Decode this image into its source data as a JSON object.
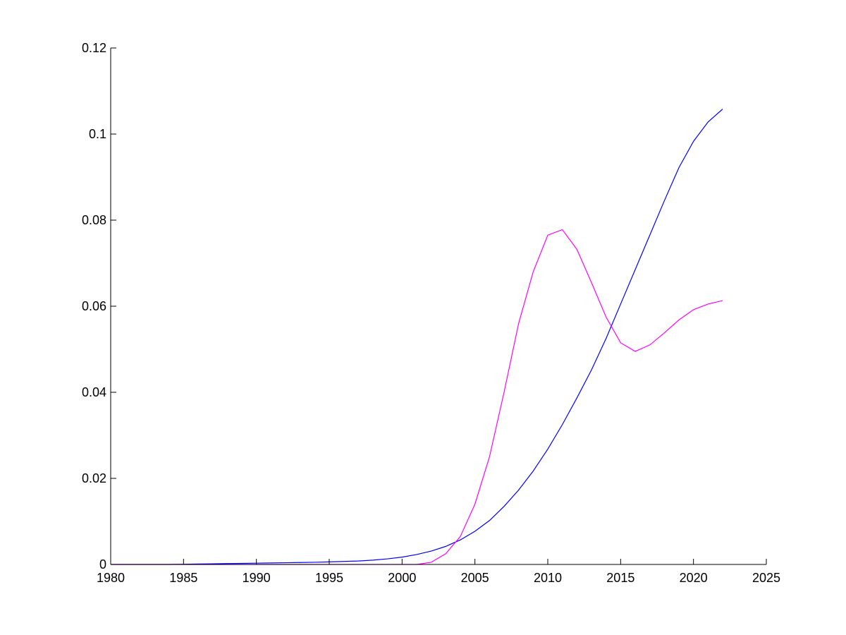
{
  "chart_data": {
    "type": "line",
    "title": "",
    "xlabel": "",
    "ylabel": "",
    "xlim": [
      1980,
      2025
    ],
    "ylim": [
      0,
      0.12
    ],
    "grid": false,
    "xticks": [
      1980,
      1985,
      1990,
      1995,
      2000,
      2005,
      2010,
      2015,
      2020,
      2025
    ],
    "yticks": [
      0,
      0.02,
      0.04,
      0.06,
      0.08,
      0.1,
      0.12
    ],
    "xtick_labels": [
      "1980",
      "1985",
      "1990",
      "1995",
      "2000",
      "2005",
      "2010",
      "2015",
      "2020",
      "2025"
    ],
    "ytick_labels": [
      "0",
      "0.02",
      "0.04",
      "0.06",
      "0.08",
      "0.1",
      "0.12"
    ],
    "x": [
      1980,
      1981,
      1982,
      1983,
      1984,
      1985,
      1986,
      1987,
      1988,
      1989,
      1990,
      1991,
      1992,
      1993,
      1994,
      1995,
      1996,
      1997,
      1998,
      1999,
      2000,
      2001,
      2002,
      2003,
      2004,
      2005,
      2006,
      2007,
      2008,
      2009,
      2010,
      2011,
      2012,
      2013,
      2014,
      2015,
      2016,
      2017,
      2018,
      2019,
      2020,
      2021,
      2022
    ],
    "series": [
      {
        "color": "#0000ff",
        "values": [
          0,
          0,
          0,
          0,
          0,
          5e-05,
          0.0001,
          0.00015,
          0.0002,
          0.00025,
          0.0003,
          0.00035,
          0.0004,
          0.00045,
          0.0005,
          0.0006,
          0.0007,
          0.0008,
          0.001,
          0.0013,
          0.0017,
          0.0023,
          0.0031,
          0.0042,
          0.0057,
          0.0077,
          0.0102,
          0.0135,
          0.0173,
          0.0217,
          0.0268,
          0.0325,
          0.0387,
          0.0452,
          0.0525,
          0.0605,
          0.0685,
          0.0765,
          0.0845,
          0.0922,
          0.0983,
          0.1028,
          0.1058
        ]
      },
      {
        "color": "#ff00ff",
        "values": [
          0,
          0,
          0,
          0,
          0,
          0,
          0,
          0,
          0,
          0,
          0,
          0,
          0,
          0,
          0,
          0,
          0,
          0,
          0,
          0,
          0,
          0,
          0.0005,
          0.0025,
          0.0065,
          0.014,
          0.025,
          0.04,
          0.056,
          0.068,
          0.0765,
          0.0778,
          0.0732,
          0.0655,
          0.0575,
          0.0515,
          0.0495,
          0.051,
          0.0538,
          0.0568,
          0.0592,
          0.0605,
          0.0613
        ]
      }
    ]
  }
}
